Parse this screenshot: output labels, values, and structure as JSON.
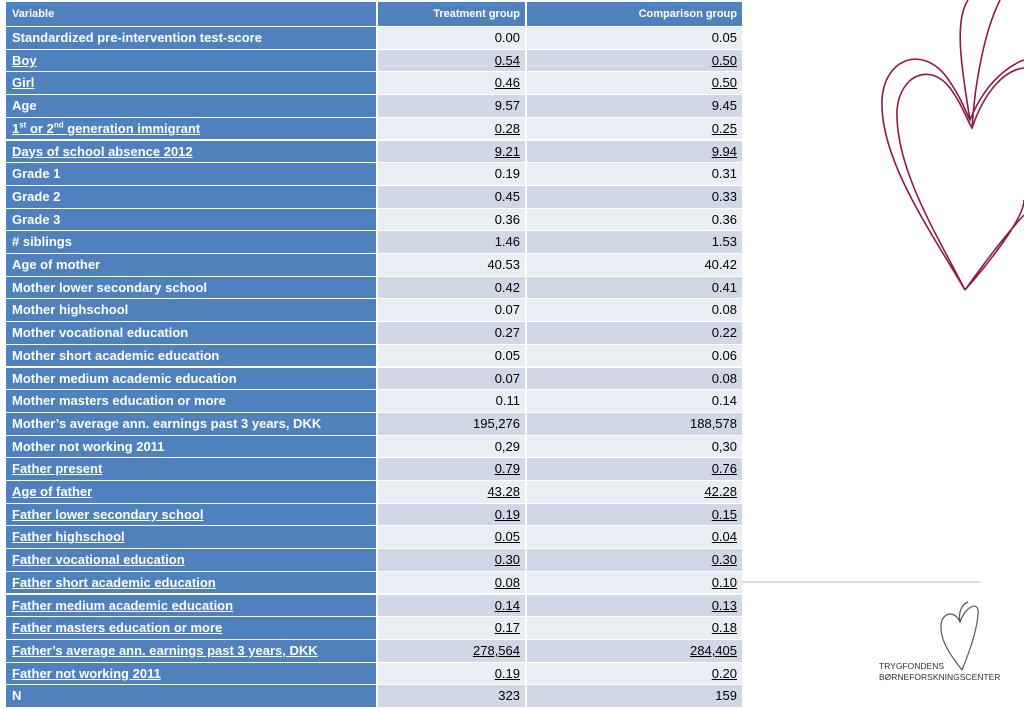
{
  "table": {
    "header": [
      "Variable",
      "Treatment group",
      "Comparison group"
    ],
    "rows": [
      {
        "label": "Standardized pre-intervention test-score",
        "treatment": "0.00",
        "comparison": "0.05",
        "underlined": false
      },
      {
        "label": "Boy",
        "treatment": "0.54",
        "comparison": "0.50",
        "underlined": true
      },
      {
        "label": "Girl",
        "treatment": "0.46",
        "comparison": "0.50",
        "underlined": true
      },
      {
        "label": "Age",
        "treatment": "9.57",
        "comparison": "9.45",
        "underlined": false
      },
      {
        "label": [
          {
            "text": "1"
          },
          {
            "text": "st",
            "sup": true
          },
          {
            "text": " or 2"
          },
          {
            "text": "nd",
            "sup": true
          },
          {
            "text": " generation immigrant"
          }
        ],
        "treatment": "0.28",
        "comparison": "0.25",
        "underlined": true
      },
      {
        "label": "Days of school absence 2012",
        "treatment": "9.21",
        "comparison": "9.94",
        "underlined": true
      },
      {
        "label": "Grade 1",
        "treatment": "0.19",
        "comparison": "0.31",
        "underlined": false
      },
      {
        "label": "Grade 2",
        "treatment": "0.45",
        "comparison": "0.33",
        "underlined": false
      },
      {
        "label": "Grade 3",
        "treatment": "0.36",
        "comparison": "0.36",
        "underlined": false
      },
      {
        "label": "# siblings",
        "treatment": "1.46",
        "comparison": "1.53",
        "underlined": false
      },
      {
        "label": "Age of mother",
        "treatment": "40.53",
        "comparison": "40.42",
        "underlined": false
      },
      {
        "label": "Mother lower secondary school",
        "treatment": "0.42",
        "comparison": "0.41",
        "underlined": false
      },
      {
        "label": "Mother highschool",
        "treatment": "0.07",
        "comparison": "0.08",
        "underlined": false
      },
      {
        "label": "Mother vocational education",
        "treatment": "0.27",
        "comparison": "0.22",
        "underlined": false
      },
      {
        "label": "Mother short academic education",
        "treatment": "0.05",
        "comparison": "0.06",
        "underlined": false
      },
      {
        "label": "Mother medium academic education",
        "treatment": "0.07",
        "comparison": "0.08",
        "underlined": false
      },
      {
        "label": "Mother masters education or more",
        "treatment": "0.11",
        "comparison": "0.14",
        "underlined": false
      },
      {
        "label": "Mother’s average ann. earnings past 3 years, DKK",
        "treatment": "195,276",
        "comparison": "188,578",
        "underlined": false
      },
      {
        "label": "Mother not working 2011",
        "treatment": "0,29",
        "comparison": "0,30",
        "underlined": false
      },
      {
        "label": "Father present",
        "treatment": "0.79",
        "comparison": "0.76",
        "underlined": true
      },
      {
        "label": "Age of father",
        "treatment": "43.28",
        "comparison": "42.28",
        "underlined": true
      },
      {
        "label": "Father lower secondary school",
        "treatment": "0.19",
        "comparison": "0.15",
        "underlined": true
      },
      {
        "label": "Father highschool",
        "treatment": "0.05",
        "comparison": "0.04",
        "underlined": true
      },
      {
        "label": "Father vocational education",
        "treatment": "0.30",
        "comparison": "0.30",
        "underlined": true
      },
      {
        "label": "Father short academic education",
        "treatment": "0.08",
        "comparison": "0.10",
        "underlined": true
      },
      {
        "label": "Father medium academic education",
        "treatment": "0.14",
        "comparison": "0.13",
        "underlined": true
      },
      {
        "label": "Father masters education or more",
        "treatment": "0.17",
        "comparison": "0.18",
        "underlined": true
      },
      {
        "label": "Father’s average ann. earnings past 3 years, DKK",
        "treatment": "278,564",
        "comparison": "284,405",
        "underlined": true
      },
      {
        "label": "Father not working 2011",
        "treatment": "0.19",
        "comparison": "0.20",
        "underlined": true
      },
      {
        "label": "N",
        "treatment": "323",
        "comparison": "159",
        "underlined": false
      }
    ]
  },
  "logo": {
    "line1": "TRYGFONDENS",
    "line2": "BØRNEFORSKNINGSCENTER"
  }
}
